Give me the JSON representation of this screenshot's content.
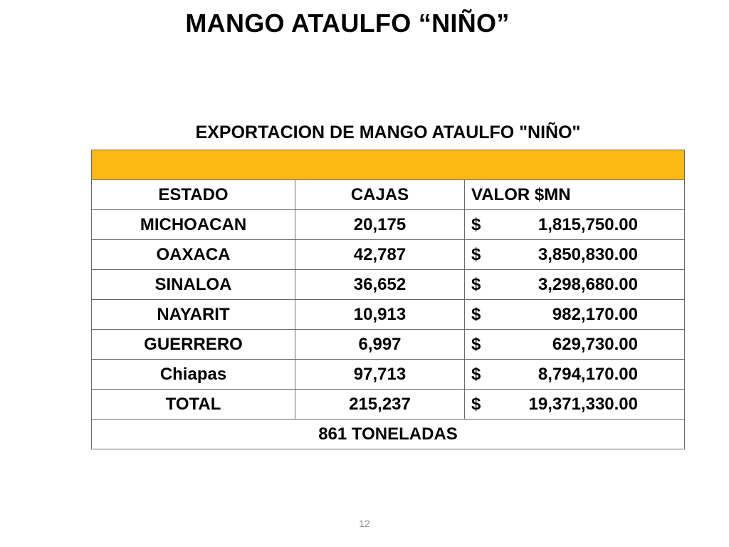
{
  "slide": {
    "title": "MANGO ATAULFO “NIÑO”",
    "page_number": "12"
  },
  "table": {
    "caption": "EXPORTACION DE MANGO ATAULFO \"NIÑO\"",
    "band_color": "#FDB913",
    "headers": [
      "ESTADO",
      "CAJAS",
      "VALOR $MN"
    ],
    "rows": [
      {
        "estado": "MICHOACAN",
        "cajas": "20,175",
        "currency": "$",
        "valor": "1,815,750.00"
      },
      {
        "estado": "OAXACA",
        "cajas": "42,787",
        "currency": "$",
        "valor": "3,850,830.00"
      },
      {
        "estado": "SINALOA",
        "cajas": "36,652",
        "currency": "$",
        "valor": "3,298,680.00"
      },
      {
        "estado": "NAYARIT",
        "cajas": "10,913",
        "currency": "$",
        "valor": "982,170.00"
      },
      {
        "estado": "GUERRERO",
        "cajas": "6,997",
        "currency": "$",
        "valor": "629,730.00"
      },
      {
        "estado": "Chiapas",
        "cajas": "97,713",
        "currency": "$",
        "valor": "8,794,170.00"
      }
    ],
    "total": {
      "estado": "TOTAL",
      "cajas": "215,237",
      "currency": "$",
      "valor": "19,371,330.00"
    },
    "footer": "861 TONELADAS"
  }
}
